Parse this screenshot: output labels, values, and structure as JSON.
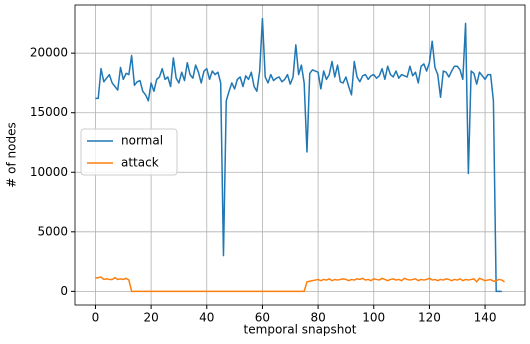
{
  "chart_data": {
    "type": "line",
    "xlabel": "temporal snapshot",
    "ylabel": "# of nodes",
    "x": [
      0,
      1,
      2,
      3,
      4,
      5,
      6,
      7,
      8,
      9,
      10,
      11,
      12,
      13,
      14,
      15,
      16,
      17,
      18,
      19,
      20,
      21,
      22,
      23,
      24,
      25,
      26,
      27,
      28,
      29,
      30,
      31,
      32,
      33,
      34,
      35,
      36,
      37,
      38,
      39,
      40,
      41,
      42,
      43,
      44,
      45,
      46,
      47,
      48,
      49,
      50,
      51,
      52,
      53,
      54,
      55,
      56,
      57,
      58,
      59,
      60,
      61,
      62,
      63,
      64,
      65,
      66,
      67,
      68,
      69,
      70,
      71,
      72,
      73,
      74,
      75,
      76,
      77,
      78,
      79,
      80,
      81,
      82,
      83,
      84,
      85,
      86,
      87,
      88,
      89,
      90,
      91,
      92,
      93,
      94,
      95,
      96,
      97,
      98,
      99,
      100,
      101,
      102,
      103,
      104,
      105,
      106,
      107,
      108,
      109,
      110,
      111,
      112,
      113,
      114,
      115,
      116,
      117,
      118,
      119,
      120,
      121,
      122,
      123,
      124,
      125,
      126,
      127,
      128,
      129,
      130,
      131,
      132,
      133,
      134,
      135,
      136,
      137,
      138,
      139,
      140,
      141,
      142,
      143,
      144,
      145,
      146,
      147
    ],
    "series": [
      {
        "name": "normal",
        "color": "#1f77b4",
        "values": [
          16200,
          16200,
          18700,
          17600,
          17900,
          18200,
          17500,
          17200,
          16900,
          18800,
          17800,
          18300,
          18200,
          19800,
          17300,
          17600,
          17700,
          16800,
          16500,
          16000,
          17500,
          16800,
          17800,
          18000,
          18700,
          17800,
          18000,
          17200,
          19600,
          17900,
          17500,
          18400,
          17700,
          19200,
          18200,
          17900,
          19000,
          18400,
          17500,
          18500,
          18700,
          17800,
          18500,
          18200,
          18400,
          17500,
          3000,
          16000,
          16800,
          17500,
          17000,
          17800,
          18000,
          17200,
          18100,
          17800,
          18400,
          17200,
          16800,
          18500,
          22900,
          18000,
          17500,
          18200,
          17700,
          17900,
          18000,
          17600,
          17800,
          18200,
          17400,
          18000,
          20700,
          18200,
          19000,
          17500,
          11700,
          18300,
          18600,
          18500,
          18400,
          17000,
          18500,
          17800,
          18200,
          19300,
          18000,
          19000,
          17600,
          17500,
          18000,
          17200,
          16500,
          19300,
          18000,
          17600,
          18100,
          18200,
          17800,
          18100,
          18200,
          17900,
          18100,
          18700,
          17800,
          18900,
          18200,
          18000,
          18500,
          17900,
          18200,
          18100,
          18000,
          18900,
          18100,
          18400,
          17500,
          18900,
          19100,
          18500,
          19200,
          21000,
          18800,
          18200,
          16300,
          18500,
          18400,
          18000,
          18500,
          18900,
          18900,
          18600,
          17800,
          22500,
          9900,
          18500,
          18300,
          17400,
          18400,
          18100,
          17800,
          18200,
          18200,
          16000,
          0,
          0,
          0,
          null
        ]
      },
      {
        "name": "attack",
        "color": "#ff7f0e",
        "values": [
          1100,
          1150,
          1200,
          1000,
          1050,
          1000,
          1000,
          1150,
          1000,
          1050,
          1000,
          1100,
          950,
          0,
          0,
          0,
          0,
          0,
          0,
          0,
          0,
          0,
          0,
          0,
          0,
          0,
          0,
          0,
          0,
          0,
          0,
          0,
          0,
          0,
          0,
          0,
          0,
          0,
          0,
          0,
          0,
          0,
          0,
          0,
          0,
          0,
          0,
          0,
          0,
          0,
          0,
          0,
          0,
          0,
          0,
          0,
          0,
          0,
          0,
          0,
          0,
          0,
          0,
          0,
          0,
          0,
          0,
          0,
          0,
          0,
          0,
          0,
          0,
          0,
          0,
          0,
          800,
          850,
          900,
          950,
          1000,
          900,
          1000,
          950,
          1050,
          900,
          1000,
          950,
          1000,
          1050,
          1000,
          900,
          1000,
          950,
          1050,
          1000,
          1100,
          950,
          1000,
          900,
          1050,
          1000,
          950,
          1100,
          1000,
          900,
          1000,
          1050,
          950,
          1000,
          900,
          1100,
          1000,
          950,
          1000,
          1050,
          900,
          1000,
          950,
          1000,
          1100,
          950,
          1000,
          900,
          1000,
          950,
          1050,
          1000,
          900,
          1000,
          950,
          1050,
          900,
          1000,
          950,
          1000,
          1050,
          800,
          1100,
          1000,
          900,
          950,
          1000,
          850,
          900,
          1000,
          950,
          800
        ]
      }
    ],
    "xlim": [
      -7.35,
      154.35
    ],
    "xticks": [
      0,
      20,
      40,
      60,
      80,
      100,
      120,
      140
    ],
    "ylim": [
      -1145,
      24045
    ],
    "yticks": [
      0,
      5000,
      10000,
      15000,
      20000
    ],
    "grid": true,
    "legend": "center left"
  }
}
